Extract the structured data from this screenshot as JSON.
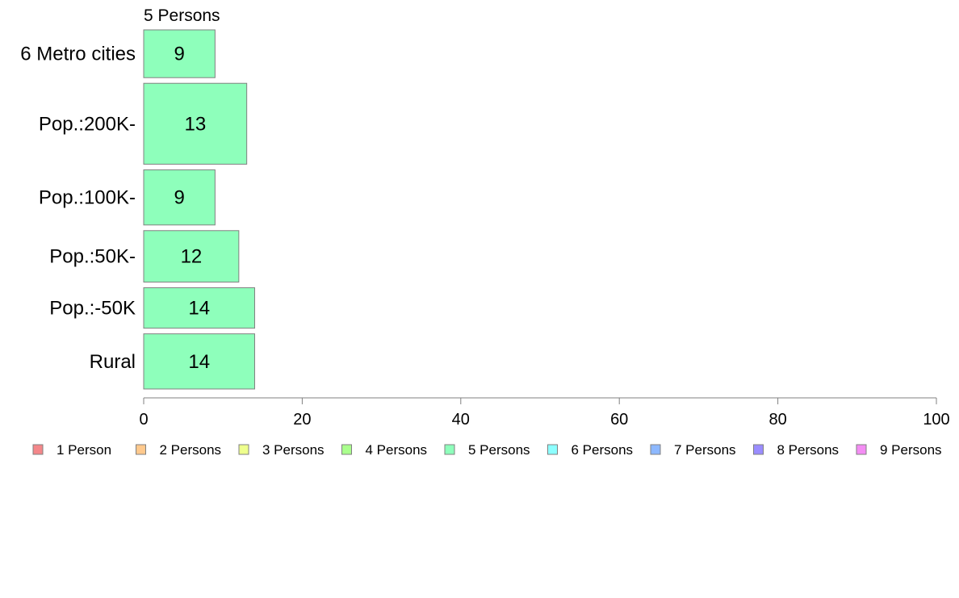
{
  "chart_data": {
    "type": "bar",
    "orientation": "horizontal",
    "series_header": "5 Persons",
    "categories": [
      "6 Metro cities",
      "Pop.:200K-",
      "Pop.:100K-",
      "Pop.:50K-",
      "Pop.:-50K",
      "Rural"
    ],
    "series": [
      {
        "name": "5 Persons",
        "color": "#8effbb",
        "values": [
          9,
          13,
          9,
          12,
          14,
          14
        ],
        "category_weights": [
          0.13,
          0.22,
          0.15,
          0.14,
          0.11,
          0.15
        ]
      }
    ],
    "xlim": [
      0,
      100
    ],
    "xticks": [
      0,
      20,
      40,
      60,
      80,
      100
    ],
    "grid": false,
    "legend_position": "bottom",
    "legend": [
      {
        "name": "1 Person",
        "color": "#f4878a"
      },
      {
        "name": "2 Persons",
        "color": "#ffc98d"
      },
      {
        "name": "3 Persons",
        "color": "#eeff8d"
      },
      {
        "name": "4 Persons",
        "color": "#aaff8d"
      },
      {
        "name": "5 Persons",
        "color": "#8effbb"
      },
      {
        "name": "6 Persons",
        "color": "#8dffff"
      },
      {
        "name": "7 Persons",
        "color": "#8db8ff"
      },
      {
        "name": "8 Persons",
        "color": "#9a8dff"
      },
      {
        "name": "9 Persons",
        "color": "#f48df4"
      }
    ]
  }
}
